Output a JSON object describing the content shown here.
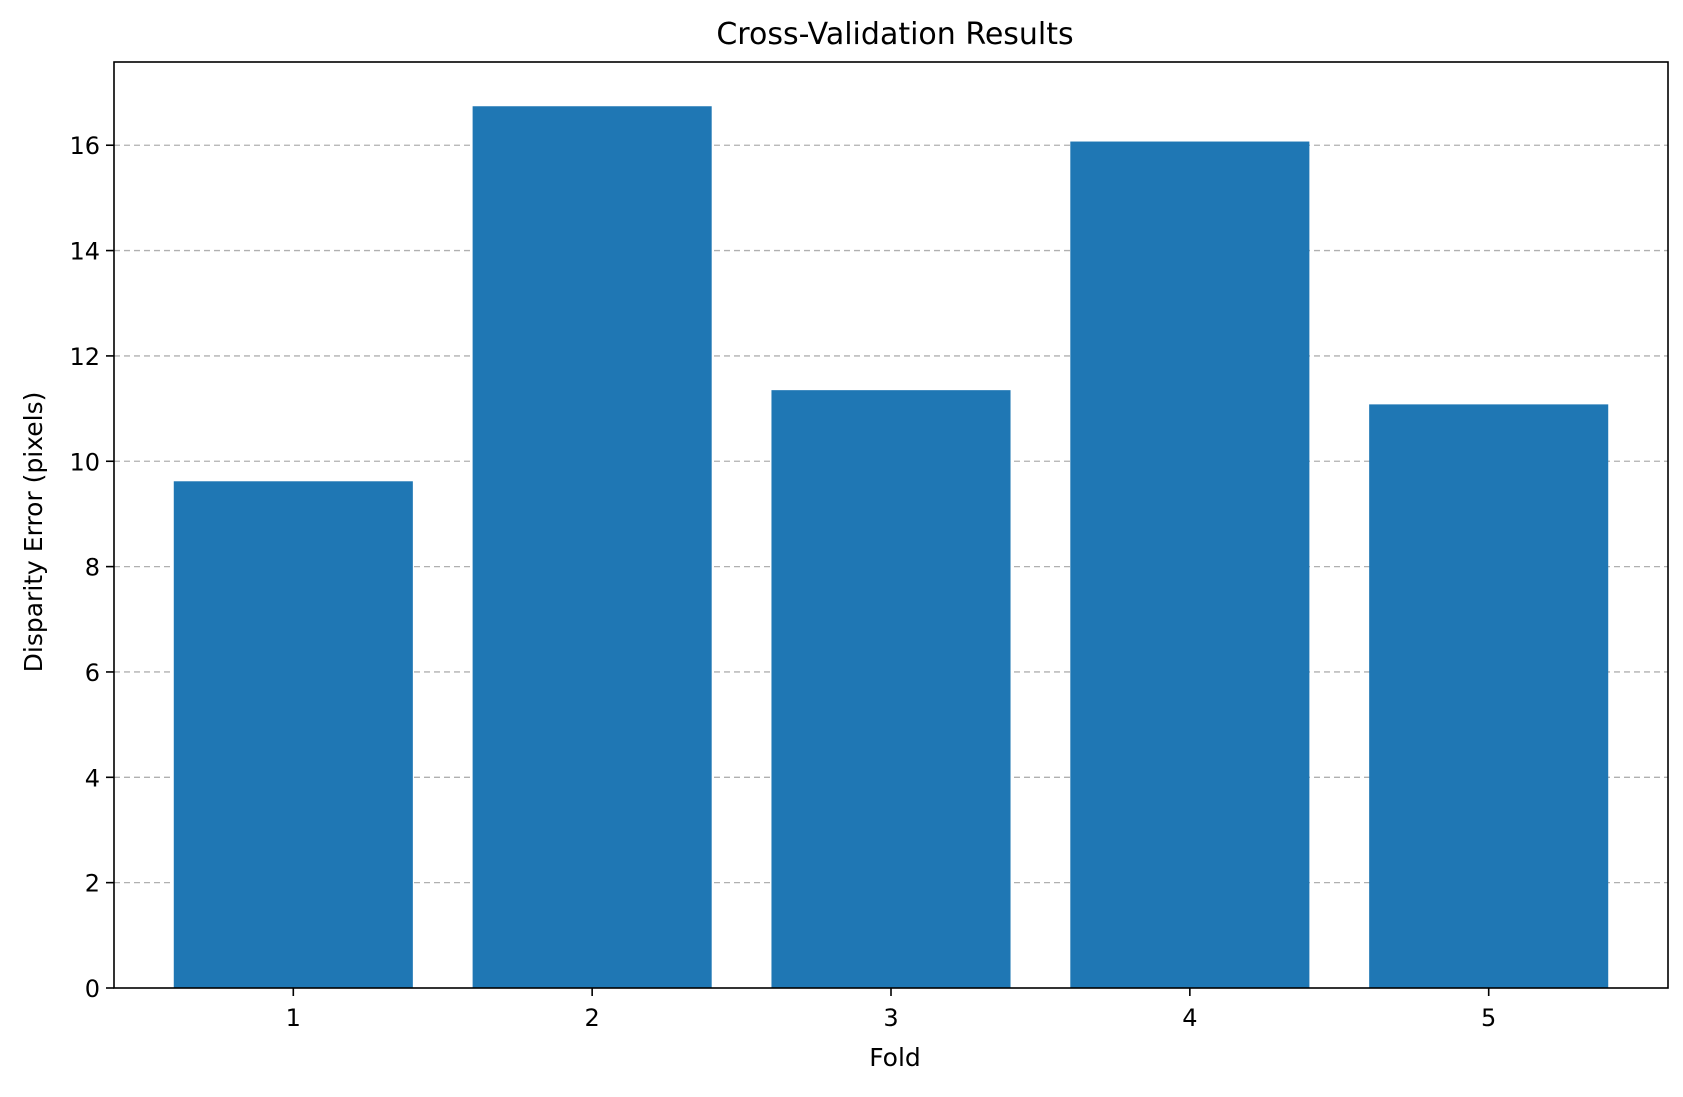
{
  "chart_data": {
    "type": "bar",
    "title": "Cross-Validation Results",
    "xlabel": "Fold",
    "ylabel": "Disparity Error (pixels)",
    "categories": [
      "1",
      "2",
      "3",
      "4",
      "5"
    ],
    "values": [
      9.62,
      16.74,
      11.35,
      16.07,
      11.08
    ],
    "ylim": [
      0,
      17.58
    ],
    "yticks": [
      0,
      2,
      4,
      6,
      8,
      10,
      12,
      14,
      16
    ],
    "grid": "y-dashed",
    "bar_color": "#1f77b4",
    "grid_color": "#b0b0b0"
  }
}
